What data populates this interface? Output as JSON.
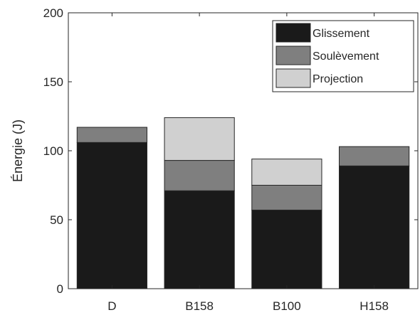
{
  "chart_data": {
    "type": "bar",
    "stacked": true,
    "categories": [
      "D",
      "B158",
      "B100",
      "H158"
    ],
    "series": [
      {
        "name": "Glissement",
        "values": [
          106,
          71,
          57,
          89
        ],
        "color": "#1a1a1a"
      },
      {
        "name": "Soulèvement",
        "values": [
          11,
          22,
          18,
          14
        ],
        "color": "#7f7f7f"
      },
      {
        "name": "Projection",
        "values": [
          0,
          31,
          19,
          0
        ],
        "color": "#d0d0d0"
      }
    ],
    "xlabel": "",
    "ylabel": "Énergie (J)",
    "ylim": [
      0,
      200
    ],
    "yticks": [
      "0",
      "50",
      "100",
      "150",
      "200"
    ],
    "grid": false,
    "legend_position": "top-right"
  }
}
